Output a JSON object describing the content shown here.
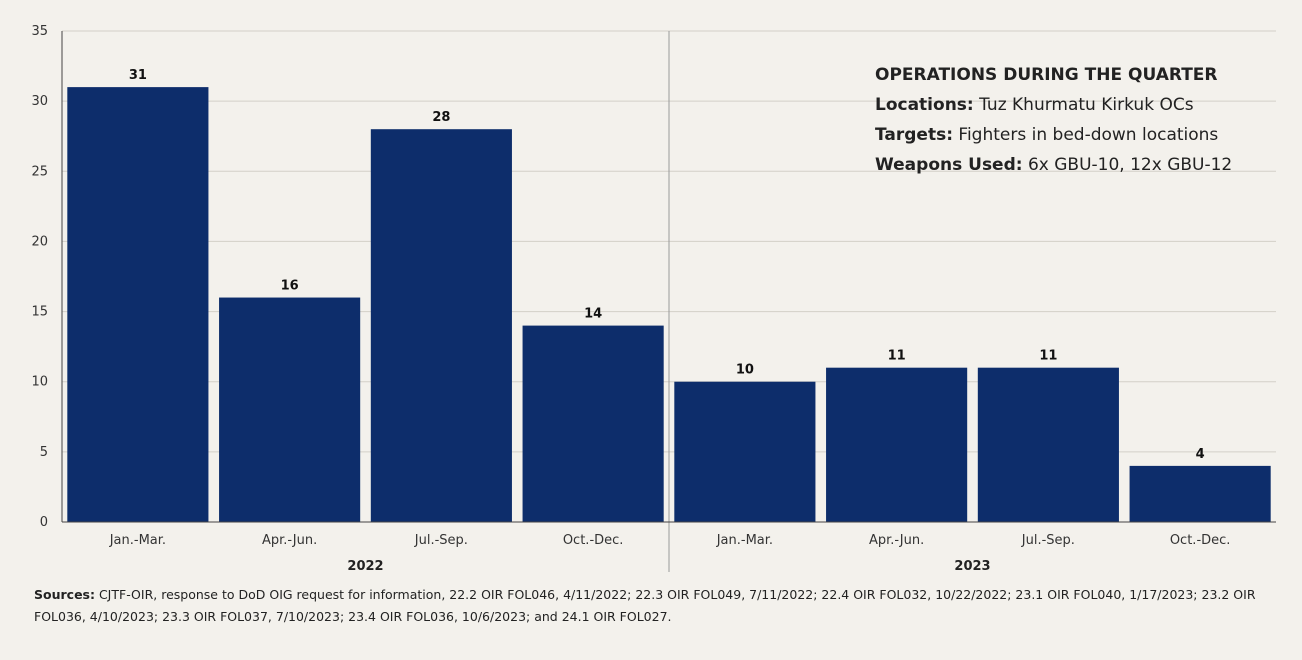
{
  "chart_data": {
    "type": "bar",
    "categories": [
      "Jan.-Mar.",
      "Apr.-Jun.",
      "Jul.-Sep.",
      "Oct.-Dec.",
      "Jan.-Mar.",
      "Apr.-Jun.",
      "Jul.-Sep.",
      "Oct.-Dec."
    ],
    "groups": [
      {
        "label": "2022",
        "start": 0,
        "end": 3
      },
      {
        "label": "2023",
        "start": 4,
        "end": 7
      }
    ],
    "values": [
      31,
      16,
      28,
      14,
      10,
      11,
      11,
      4
    ],
    "yticks": [
      0,
      5,
      10,
      15,
      20,
      25,
      30,
      35
    ],
    "ylim": [
      0,
      35
    ],
    "grid": true,
    "bar_color": "#0d2d6b",
    "title": "",
    "xlabel": "",
    "ylabel": ""
  },
  "info": {
    "heading": "OPERATIONS DURING THE QUARTER",
    "locations_label": "Locations:",
    "locations_value": " Tuz Khurmatu  Kirkuk OCs",
    "targets_label": "Targets:",
    "targets_value": " Fighters in bed-down locations",
    "weapons_label": "Weapons Used:",
    "weapons_value": " 6x GBU-10, 12x GBU-12"
  },
  "sources": {
    "label": "Sources:",
    "text": " CJTF-OIR, response to DoD OIG request for information, 22.2 OIR FOL046, 4/11/2022; 22.3 OIR FOL049, 7/11/2022; 22.4 OIR FOL032, 10/22/2022; 23.1 OIR FOL040, 1/17/2023; 23.2 OIR FOL036, 4/10/2023;  23.3 OIR FOL037, 7/10/2023; 23.4 OIR FOL036, 10/6/2023; and 24.1 OIR FOL027."
  }
}
